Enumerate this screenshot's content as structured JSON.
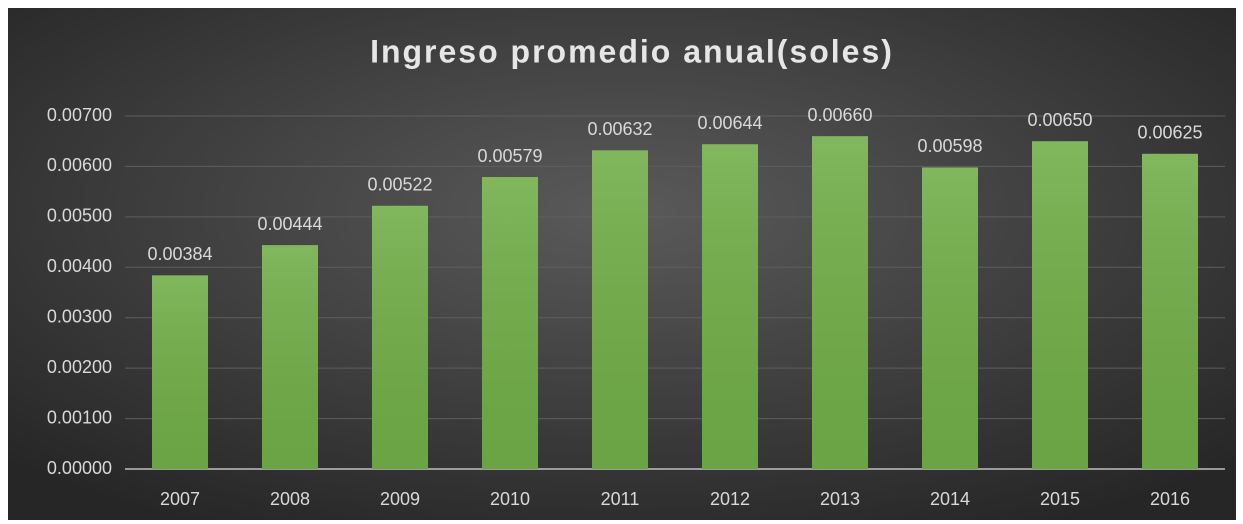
{
  "chart_data": {
    "type": "bar",
    "title": "Ingreso promedio anual(soles)",
    "categories": [
      "2007",
      "2008",
      "2009",
      "2010",
      "2011",
      "2012",
      "2013",
      "2014",
      "2015",
      "2016"
    ],
    "values": [
      0.00384,
      0.00444,
      0.00522,
      0.00579,
      0.00632,
      0.00644,
      0.0066,
      0.00598,
      0.0065,
      0.00625
    ],
    "value_labels": [
      "0.00384",
      "0.00444",
      "0.00522",
      "0.00579",
      "0.00632",
      "0.00644",
      "0.00660",
      "0.00598",
      "0.00650",
      "0.00625"
    ],
    "color": "#70ad47",
    "ylim": [
      0,
      0.007
    ],
    "yticks": [
      {
        "value": 0,
        "label": "0.00000"
      },
      {
        "value": 0.001,
        "label": "0.00100"
      },
      {
        "value": 0.002,
        "label": "0.00200"
      },
      {
        "value": 0.003,
        "label": "0.00300"
      },
      {
        "value": 0.004,
        "label": "0.00400"
      },
      {
        "value": 0.005,
        "label": "0.00500"
      },
      {
        "value": 0.006,
        "label": "0.00600"
      },
      {
        "value": 0.007,
        "label": "0.00700"
      }
    ],
    "grid": true
  }
}
